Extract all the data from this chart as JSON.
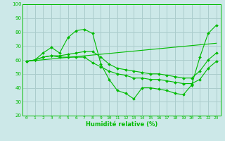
{
  "title": "",
  "xlabel": "Humidité relative (%)",
  "ylabel": "",
  "bg_color": "#cce8e8",
  "grid_color": "#aacccc",
  "line_color": "#00bb00",
  "marker": "D",
  "marker_size": 2.0,
  "xlim": [
    -0.5,
    23.5
  ],
  "ylim": [
    20,
    100
  ],
  "xticks": [
    0,
    1,
    2,
    3,
    4,
    5,
    6,
    7,
    8,
    9,
    10,
    11,
    12,
    13,
    14,
    15,
    16,
    17,
    18,
    19,
    20,
    21,
    22,
    23
  ],
  "yticks": [
    20,
    30,
    40,
    50,
    60,
    70,
    80,
    90,
    100
  ],
  "series": [
    {
      "x": [
        0,
        1,
        2,
        3,
        4,
        5,
        6,
        7,
        8,
        9,
        10,
        11,
        12,
        13,
        14,
        15,
        16,
        17,
        18,
        19,
        20,
        21,
        22,
        23
      ],
      "y": [
        59,
        60,
        65,
        69,
        65,
        76,
        81,
        82,
        79,
        57,
        46,
        38,
        36,
        32,
        40,
        40,
        39,
        38,
        36,
        35,
        42,
        62,
        79,
        85
      ],
      "has_markers": true
    },
    {
      "x": [
        0,
        1,
        2,
        3,
        4,
        5,
        6,
        7,
        8,
        9,
        10,
        11,
        12,
        13,
        14,
        15,
        16,
        17,
        18,
        19,
        20,
        21,
        22,
        23
      ],
      "y": [
        59,
        60,
        62,
        63,
        63,
        64,
        65,
        66,
        66,
        62,
        57,
        54,
        53,
        52,
        51,
        50,
        50,
        49,
        48,
        47,
        47,
        52,
        60,
        65
      ],
      "has_markers": true
    },
    {
      "x": [
        0,
        1,
        2,
        3,
        4,
        5,
        6,
        7,
        8,
        9,
        10,
        11,
        12,
        13,
        14,
        15,
        16,
        17,
        18,
        19,
        20,
        21,
        22,
        23
      ],
      "y": [
        59,
        60,
        62,
        63,
        62,
        62,
        62,
        62,
        58,
        55,
        52,
        50,
        49,
        47,
        47,
        46,
        46,
        45,
        44,
        43,
        43,
        46,
        54,
        59
      ],
      "has_markers": true
    },
    {
      "x": [
        0,
        23
      ],
      "y": [
        59,
        72
      ],
      "has_markers": false
    }
  ]
}
